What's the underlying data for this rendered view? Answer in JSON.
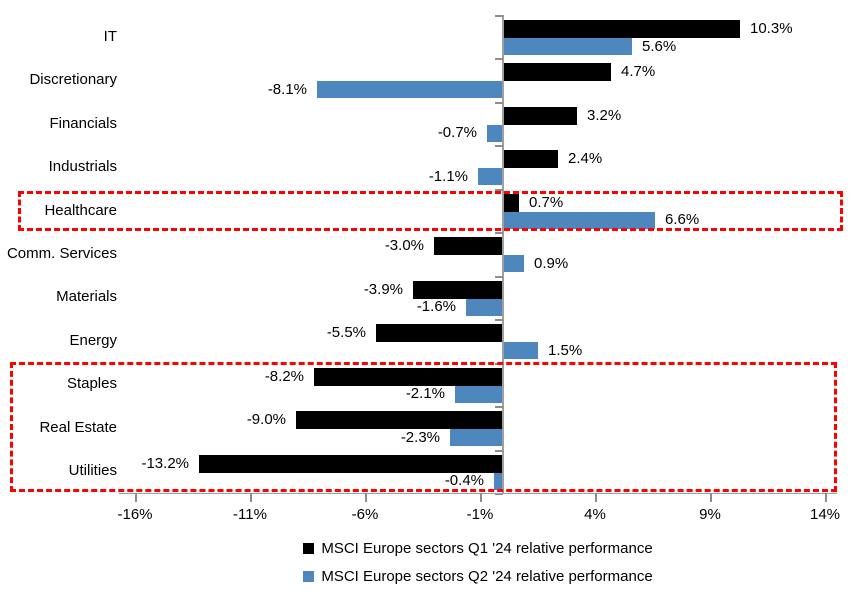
{
  "chart_data": {
    "type": "bar",
    "orientation": "horizontal",
    "title": "",
    "categories": [
      "IT",
      "Discretionary",
      "Financials",
      "Industrials",
      "Healthcare",
      "Comm. Services",
      "Materials",
      "Energy",
      "Staples",
      "Real Estate",
      "Utilities"
    ],
    "series": [
      {
        "name": "MSCI Europe sectors Q1 '24 relative performance",
        "color": "#000000",
        "values": [
          10.3,
          4.7,
          3.2,
          2.4,
          0.7,
          -3.0,
          -3.9,
          -5.5,
          -8.2,
          -9.0,
          -13.2
        ],
        "labels": [
          "10.3%",
          "4.7%",
          "3.2%",
          "2.4%",
          "0.7%",
          "-3.0%",
          "-3.9%",
          "-5.5%",
          "-8.2%",
          "-9.0%",
          "-13.2%"
        ]
      },
      {
        "name": "MSCI Europe sectors Q2 '24 relative performance",
        "color": "#4E86BE",
        "values": [
          5.6,
          -8.1,
          -0.7,
          -1.1,
          6.6,
          0.9,
          -1.6,
          1.5,
          -2.1,
          -2.3,
          -0.4
        ],
        "labels": [
          "5.6%",
          "-8.1%",
          "-0.7%",
          "-1.1%",
          "6.6%",
          "0.9%",
          "-1.6%",
          "1.5%",
          "-2.1%",
          "-2.3%",
          "-0.4%"
        ]
      }
    ],
    "x_axis": {
      "tick_labels": [
        "-16%",
        "-11%",
        "-6%",
        "-1%",
        "4%",
        "9%",
        "14%"
      ],
      "tick_values": [
        -16,
        -11,
        -6,
        -1,
        4,
        9,
        14
      ],
      "range": [
        -16.7,
        14.5
      ]
    },
    "grid": false,
    "legend_position": "bottom",
    "highlights": [
      {
        "rows": [
          "Healthcare"
        ],
        "color": "#FF0000",
        "style": "dashed"
      },
      {
        "rows": [
          "Staples",
          "Real Estate",
          "Utilities"
        ],
        "color": "#FF0000",
        "style": "dashed"
      }
    ]
  }
}
